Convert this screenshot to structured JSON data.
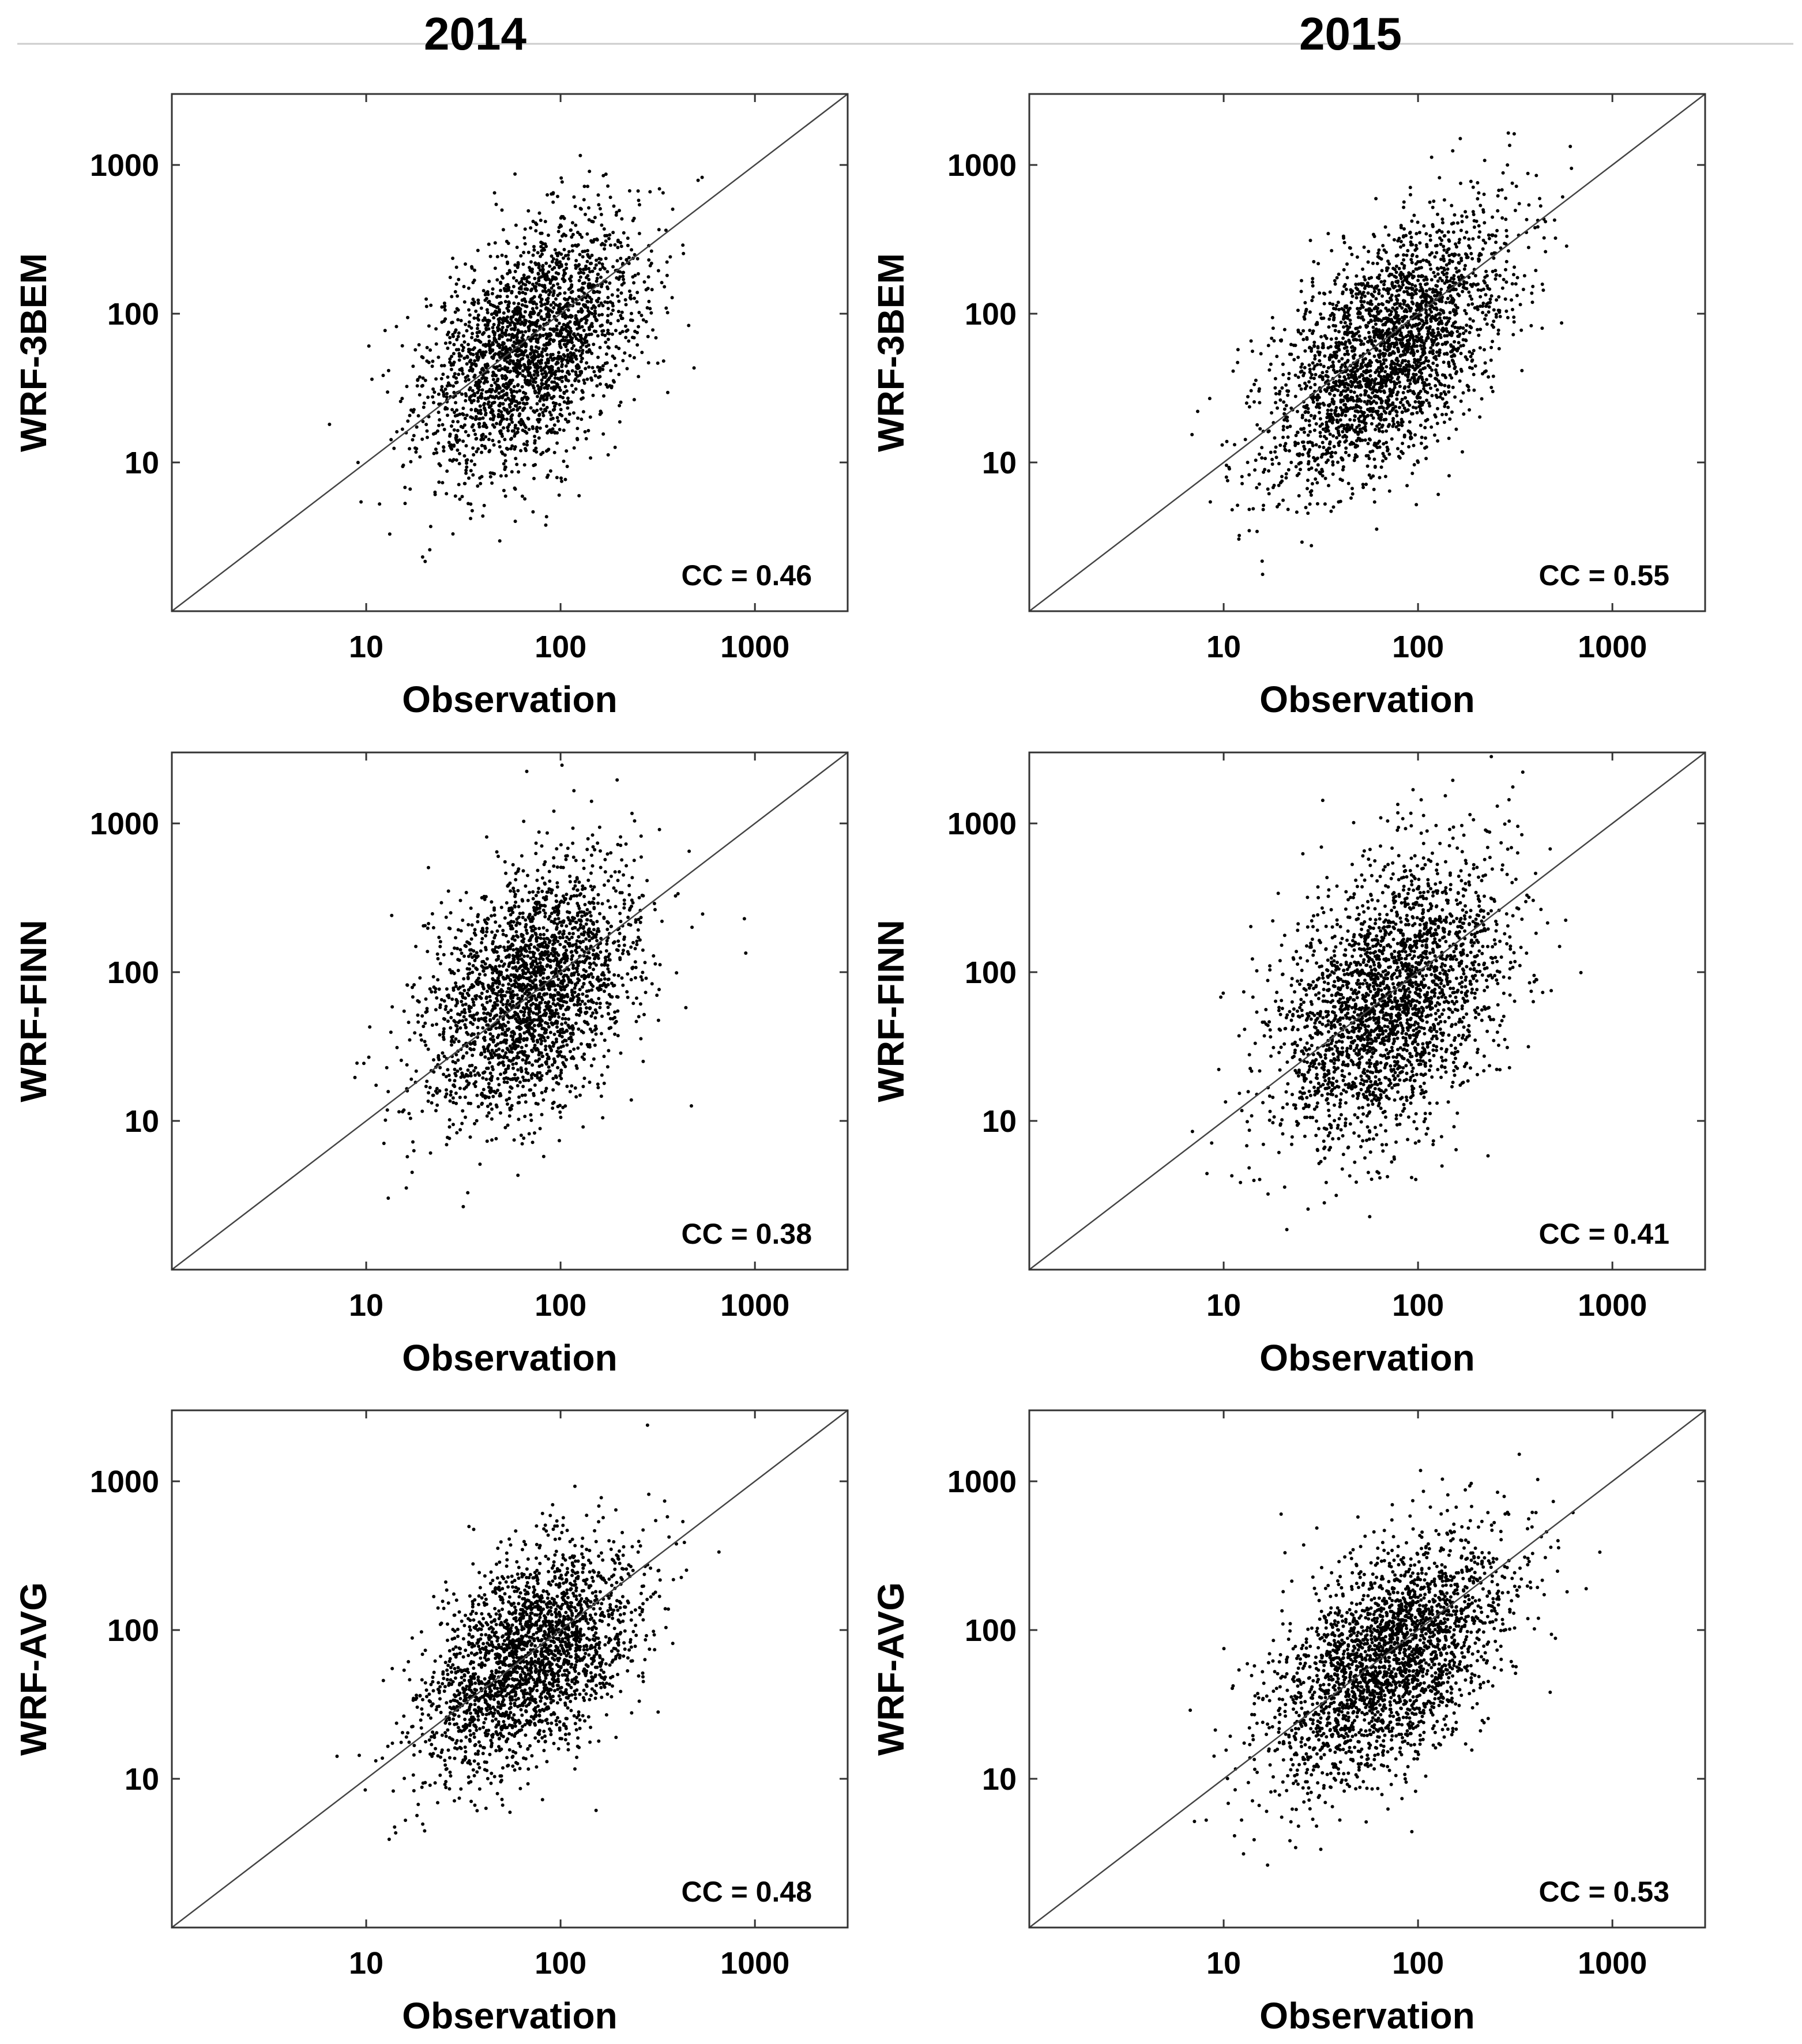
{
  "figure": {
    "columns": [
      "2014",
      "2015"
    ],
    "x_label": "Observation",
    "tick_labels": [
      "10",
      "100",
      "1000"
    ]
  },
  "chart_data": [
    {
      "type": "scatter",
      "year": "2014",
      "ylabel": "WRF-3BEM",
      "xlabel": "Observation",
      "annotation": "CC = 0.46",
      "xscale": "log",
      "yscale": "log",
      "xlim": [
        1,
        3000
      ],
      "ylim": [
        1,
        3000
      ],
      "reference_line": "1:1",
      "cloud": {
        "n": 2400,
        "x_center_log": 1.85,
        "y_center_log": 1.78,
        "x_sd_log": 0.28,
        "y_sd_log": 0.42,
        "r": 0.46
      }
    },
    {
      "type": "scatter",
      "year": "2015",
      "ylabel": "WRF-3BEM",
      "xlabel": "Observation",
      "annotation": "CC = 0.55",
      "xscale": "log",
      "yscale": "log",
      "xlim": [
        1,
        3000
      ],
      "ylim": [
        1,
        3000
      ],
      "reference_line": "1:1",
      "cloud": {
        "n": 2600,
        "x_center_log": 1.85,
        "y_center_log": 1.75,
        "x_sd_log": 0.3,
        "y_sd_log": 0.45,
        "r": 0.55
      }
    },
    {
      "type": "scatter",
      "year": "2014",
      "ylabel": "WRF-FINN",
      "xlabel": "Observation",
      "annotation": "CC = 0.38",
      "xscale": "log",
      "yscale": "log",
      "xlim": [
        1,
        3000
      ],
      "ylim": [
        1,
        3000
      ],
      "reference_line": "1:1",
      "cloud": {
        "n": 2400,
        "x_center_log": 1.85,
        "y_center_log": 1.85,
        "x_sd_log": 0.28,
        "y_sd_log": 0.42,
        "r": 0.38
      }
    },
    {
      "type": "scatter",
      "year": "2015",
      "ylabel": "WRF-FINN",
      "xlabel": "Observation",
      "annotation": "CC = 0.41",
      "xscale": "log",
      "yscale": "log",
      "xlim": [
        1,
        3000
      ],
      "ylim": [
        1,
        3000
      ],
      "reference_line": "1:1",
      "cloud": {
        "n": 2600,
        "x_center_log": 1.85,
        "y_center_log": 1.8,
        "x_sd_log": 0.3,
        "y_sd_log": 0.48,
        "r": 0.41
      }
    },
    {
      "type": "scatter",
      "year": "2014",
      "ylabel": "WRF-AVG",
      "xlabel": "Observation",
      "annotation": "CC = 0.48",
      "xscale": "log",
      "yscale": "log",
      "xlim": [
        1,
        3000
      ],
      "ylim": [
        1,
        3000
      ],
      "reference_line": "1:1",
      "cloud": {
        "n": 2400,
        "x_center_log": 1.85,
        "y_center_log": 1.82,
        "x_sd_log": 0.28,
        "y_sd_log": 0.38,
        "r": 0.48
      }
    },
    {
      "type": "scatter",
      "year": "2015",
      "ylabel": "WRF-AVG",
      "xlabel": "Observation",
      "annotation": "CC = 0.53",
      "xscale": "log",
      "yscale": "log",
      "xlim": [
        1,
        3000
      ],
      "ylim": [
        1,
        3000
      ],
      "reference_line": "1:1",
      "cloud": {
        "n": 2600,
        "x_center_log": 1.85,
        "y_center_log": 1.8,
        "x_sd_log": 0.3,
        "y_sd_log": 0.42,
        "r": 0.53
      }
    }
  ]
}
